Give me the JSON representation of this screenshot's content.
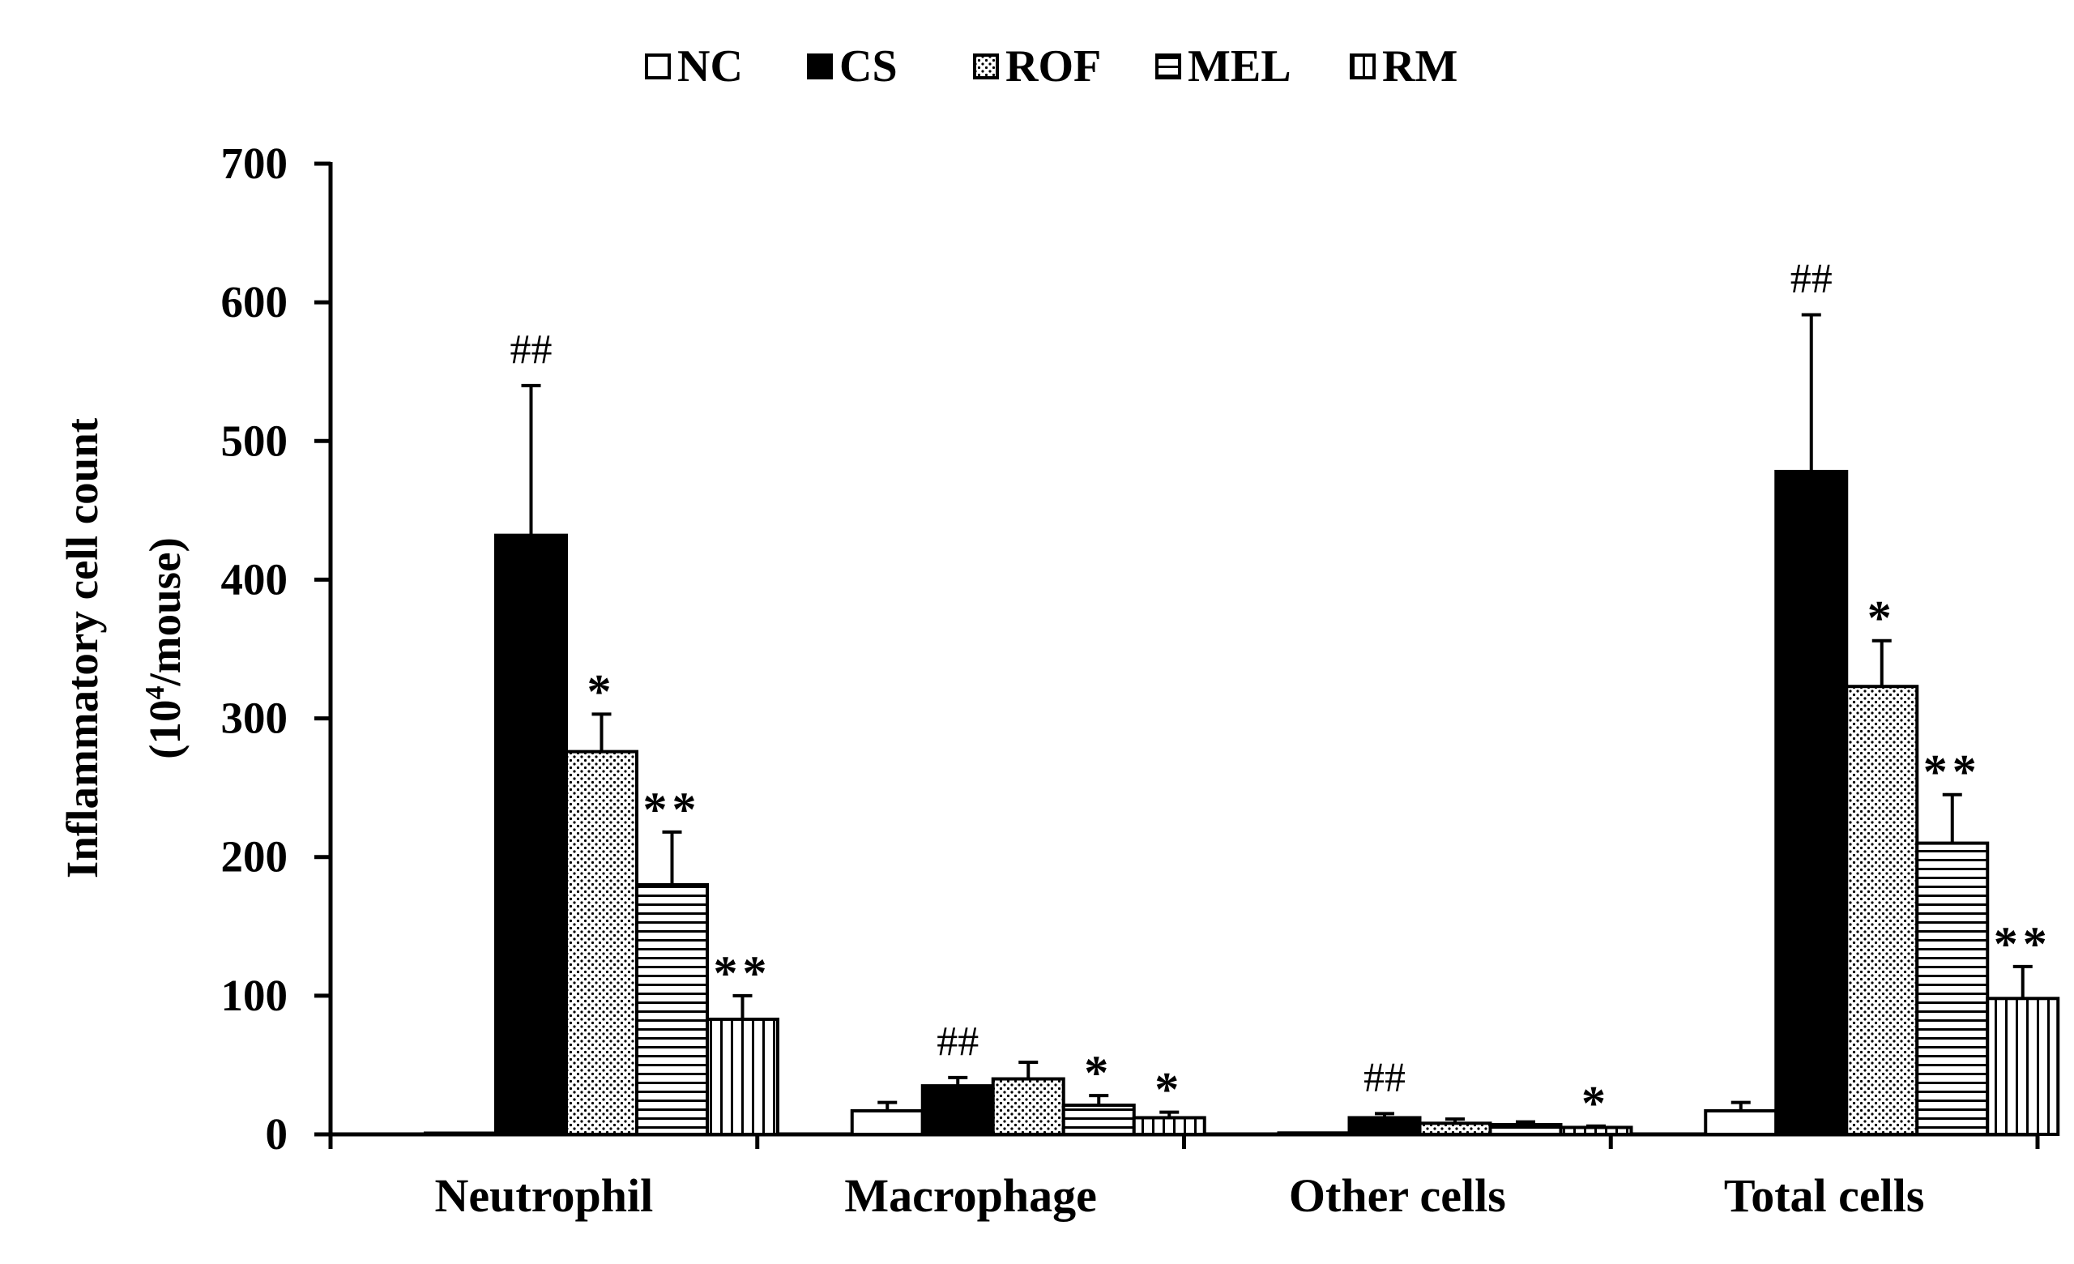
{
  "chart_data": {
    "type": "bar",
    "title": "",
    "xlabel": "",
    "ylabel_line1": "Inflammatory cell count",
    "ylabel_line2_prefix": "(10",
    "ylabel_line2_sup": "4",
    "ylabel_line2_suffix": "/mouse)",
    "ylim": [
      0,
      700
    ],
    "yticks": [
      "0",
      "100",
      "200",
      "300",
      "400",
      "500",
      "600",
      "700"
    ],
    "grid": false,
    "legend_position": "top-center",
    "categories": [
      "Neutrophil",
      "Macrophage",
      "Other cells",
      "Total cells"
    ],
    "series": [
      {
        "name": "NC",
        "pattern": "white",
        "values": [
          0,
          17,
          1,
          17
        ],
        "errors": [
          0,
          6,
          0,
          6
        ],
        "marks": [
          "",
          "",
          "",
          ""
        ]
      },
      {
        "name": "CS",
        "pattern": "black",
        "values": [
          432,
          35,
          12,
          478
        ],
        "errors": [
          108,
          6,
          3,
          113
        ],
        "marks": [
          "##",
          "##",
          "##",
          "##"
        ]
      },
      {
        "name": "ROF",
        "pattern": "dots",
        "values": [
          276,
          40,
          8,
          323
        ],
        "errors": [
          27,
          12,
          3,
          33
        ],
        "marks": [
          "*",
          "",
          "",
          "*"
        ]
      },
      {
        "name": "MEL",
        "pattern": "horizontal",
        "values": [
          180,
          21,
          7,
          210
        ],
        "errors": [
          38,
          7,
          2,
          35
        ],
        "marks": [
          "**",
          "*",
          "",
          "**"
        ]
      },
      {
        "name": "RM",
        "pattern": "vertical",
        "values": [
          83,
          12,
          5,
          98
        ],
        "errors": [
          17,
          4,
          1,
          23
        ],
        "marks": [
          "**",
          "*",
          "*",
          "**"
        ]
      }
    ]
  }
}
